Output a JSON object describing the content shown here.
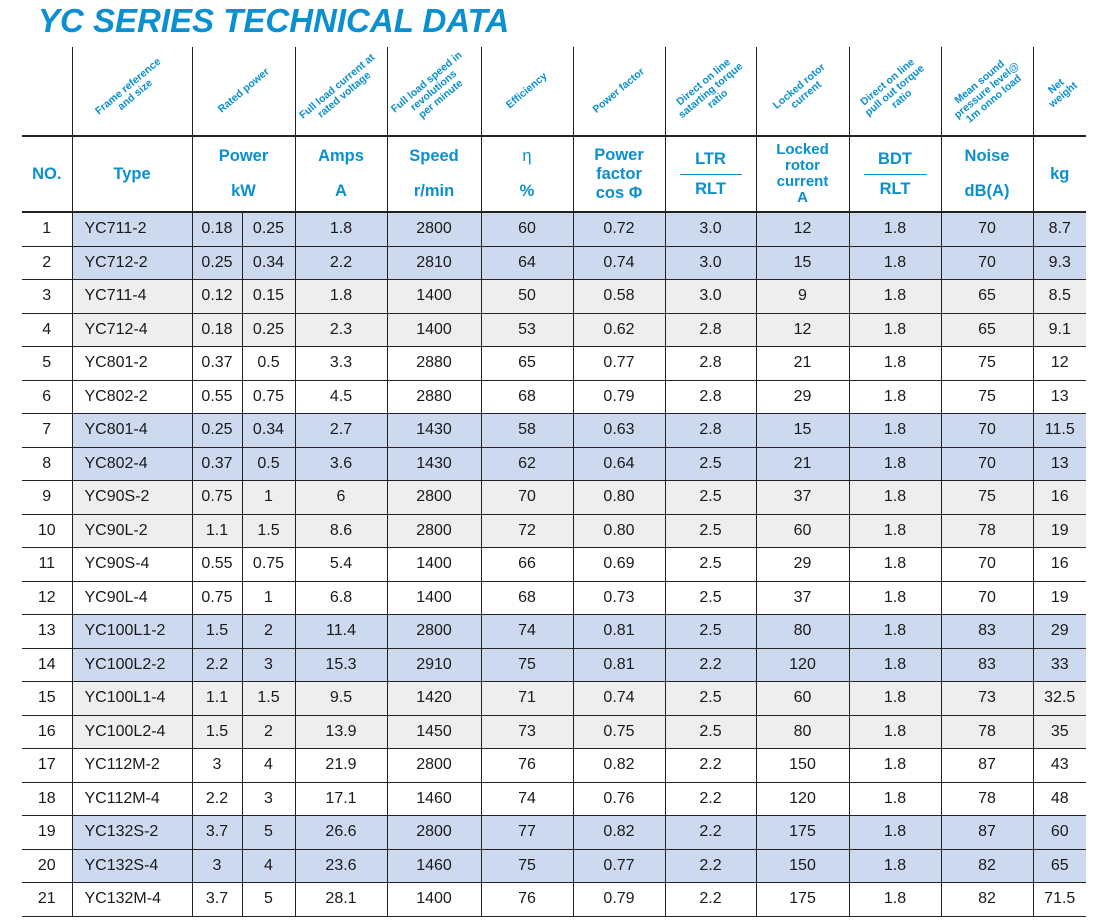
{
  "title": "YC SERIES TECHNICAL DATA",
  "rotated_headers": [
    "Frame reference\nand size",
    "Rated power",
    "Full load current at\nrated voltage",
    "Full load speed in\nrevolutions\nper minute",
    "Efficiency",
    "Power factor",
    "Direct on line\nsatarting torque\nratio",
    "Locked rotor\ncurrent",
    "Direct on line\npull out torque\nratio",
    "Mean sound\npressure level@\n1m onno load",
    "Net\nweight"
  ],
  "headers": {
    "no": "NO.",
    "type": "Type",
    "power": "Power",
    "power_unit": "kW",
    "amps": "Amps",
    "amps_unit": "A",
    "speed": "Speed",
    "speed_unit": "r/min",
    "eff": "η",
    "eff_unit": "%",
    "pf": "Power\nfactor",
    "pf_unit": "cos Φ",
    "ltr": "LTR",
    "rlt": "RLT",
    "lrc": "Locked\nrotor\ncurrent",
    "lrc_unit": "A",
    "bdt": "BDT",
    "bdt_unit": "RLT",
    "noise": "Noise",
    "noise_unit": "dB(A)",
    "kg": "kg"
  },
  "row_colors": {
    "blue": "#ccd9ee",
    "gray": "#eeeeee",
    "accent": "#0a8fd0"
  },
  "rows": [
    {
      "no": "1",
      "type": "YC711-2",
      "kw": "0.18",
      "hp": "0.25",
      "amps": "1.8",
      "speed": "2800",
      "eff": "60",
      "pf": "0.72",
      "ltr": "3.0",
      "lrc": "12",
      "bdt": "1.8",
      "noise": "70",
      "kg": "8.7",
      "shade": "blue"
    },
    {
      "no": "2",
      "type": "YC712-2",
      "kw": "0.25",
      "hp": "0.34",
      "amps": "2.2",
      "speed": "2810",
      "eff": "64",
      "pf": "0.74",
      "ltr": "3.0",
      "lrc": "15",
      "bdt": "1.8",
      "noise": "70",
      "kg": "9.3",
      "shade": "blue"
    },
    {
      "no": "3",
      "type": "YC711-4",
      "kw": "0.12",
      "hp": "0.15",
      "amps": "1.8",
      "speed": "1400",
      "eff": "50",
      "pf": "0.58",
      "ltr": "3.0",
      "lrc": "9",
      "bdt": "1.8",
      "noise": "65",
      "kg": "8.5",
      "shade": "gray"
    },
    {
      "no": "4",
      "type": "YC712-4",
      "kw": "0.18",
      "hp": "0.25",
      "amps": "2.3",
      "speed": "1400",
      "eff": "53",
      "pf": "0.62",
      "ltr": "2.8",
      "lrc": "12",
      "bdt": "1.8",
      "noise": "65",
      "kg": "9.1",
      "shade": "gray"
    },
    {
      "no": "5",
      "type": "YC801-2",
      "kw": "0.37",
      "hp": "0.5",
      "amps": "3.3",
      "speed": "2880",
      "eff": "65",
      "pf": "0.77",
      "ltr": "2.8",
      "lrc": "21",
      "bdt": "1.8",
      "noise": "75",
      "kg": "12",
      "shade": "white"
    },
    {
      "no": "6",
      "type": "YC802-2",
      "kw": "0.55",
      "hp": "0.75",
      "amps": "4.5",
      "speed": "2880",
      "eff": "68",
      "pf": "0.79",
      "ltr": "2.8",
      "lrc": "29",
      "bdt": "1.8",
      "noise": "75",
      "kg": "13",
      "shade": "white"
    },
    {
      "no": "7",
      "type": "YC801-4",
      "kw": "0.25",
      "hp": "0.34",
      "amps": "2.7",
      "speed": "1430",
      "eff": "58",
      "pf": "0.63",
      "ltr": "2.8",
      "lrc": "15",
      "bdt": "1.8",
      "noise": "70",
      "kg": "11.5",
      "shade": "blue"
    },
    {
      "no": "8",
      "type": "YC802-4",
      "kw": "0.37",
      "hp": "0.5",
      "amps": "3.6",
      "speed": "1430",
      "eff": "62",
      "pf": "0.64",
      "ltr": "2.5",
      "lrc": "21",
      "bdt": "1.8",
      "noise": "70",
      "kg": "13",
      "shade": "blue"
    },
    {
      "no": "9",
      "type": "YC90S-2",
      "kw": "0.75",
      "hp": "1",
      "amps": "6",
      "speed": "2800",
      "eff": "70",
      "pf": "0.80",
      "ltr": "2.5",
      "lrc": "37",
      "bdt": "1.8",
      "noise": "75",
      "kg": "16",
      "shade": "gray"
    },
    {
      "no": "10",
      "type": "YC90L-2",
      "kw": "1.1",
      "hp": "1.5",
      "amps": "8.6",
      "speed": "2800",
      "eff": "72",
      "pf": "0.80",
      "ltr": "2.5",
      "lrc": "60",
      "bdt": "1.8",
      "noise": "78",
      "kg": "19",
      "shade": "gray"
    },
    {
      "no": "11",
      "type": "YC90S-4",
      "kw": "0.55",
      "hp": "0.75",
      "amps": "5.4",
      "speed": "1400",
      "eff": "66",
      "pf": "0.69",
      "ltr": "2.5",
      "lrc": "29",
      "bdt": "1.8",
      "noise": "70",
      "kg": "16",
      "shade": "white"
    },
    {
      "no": "12",
      "type": "YC90L-4",
      "kw": "0.75",
      "hp": "1",
      "amps": "6.8",
      "speed": "1400",
      "eff": "68",
      "pf": "0.73",
      "ltr": "2.5",
      "lrc": "37",
      "bdt": "1.8",
      "noise": "70",
      "kg": "19",
      "shade": "white"
    },
    {
      "no": "13",
      "type": "YC100L1-2",
      "kw": "1.5",
      "hp": "2",
      "amps": "11.4",
      "speed": "2800",
      "eff": "74",
      "pf": "0.81",
      "ltr": "2.5",
      "lrc": "80",
      "bdt": "1.8",
      "noise": "83",
      "kg": "29",
      "shade": "blue"
    },
    {
      "no": "14",
      "type": "YC100L2-2",
      "kw": "2.2",
      "hp": "3",
      "amps": "15.3",
      "speed": "2910",
      "eff": "75",
      "pf": "0.81",
      "ltr": "2.2",
      "lrc": "120",
      "bdt": "1.8",
      "noise": "83",
      "kg": "33",
      "shade": "blue"
    },
    {
      "no": "15",
      "type": "YC100L1-4",
      "kw": "1.1",
      "hp": "1.5",
      "amps": "9.5",
      "speed": "1420",
      "eff": "71",
      "pf": "0.74",
      "ltr": "2.5",
      "lrc": "60",
      "bdt": "1.8",
      "noise": "73",
      "kg": "32.5",
      "shade": "gray"
    },
    {
      "no": "16",
      "type": "YC100L2-4",
      "kw": "1.5",
      "hp": "2",
      "amps": "13.9",
      "speed": "1450",
      "eff": "73",
      "pf": "0.75",
      "ltr": "2.5",
      "lrc": "80",
      "bdt": "1.8",
      "noise": "78",
      "kg": "35",
      "shade": "gray"
    },
    {
      "no": "17",
      "type": "YC112M-2",
      "kw": "3",
      "hp": "4",
      "amps": "21.9",
      "speed": "2800",
      "eff": "76",
      "pf": "0.82",
      "ltr": "2.2",
      "lrc": "150",
      "bdt": "1.8",
      "noise": "87",
      "kg": "43",
      "shade": "white"
    },
    {
      "no": "18",
      "type": "YC112M-4",
      "kw": "2.2",
      "hp": "3",
      "amps": "17.1",
      "speed": "1460",
      "eff": "74",
      "pf": "0.76",
      "ltr": "2.2",
      "lrc": "120",
      "bdt": "1.8",
      "noise": "78",
      "kg": "48",
      "shade": "white"
    },
    {
      "no": "19",
      "type": "YC132S-2",
      "kw": "3.7",
      "hp": "5",
      "amps": "26.6",
      "speed": "2800",
      "eff": "77",
      "pf": "0.82",
      "ltr": "2.2",
      "lrc": "175",
      "bdt": "1.8",
      "noise": "87",
      "kg": "60",
      "shade": "blue"
    },
    {
      "no": "20",
      "type": "YC132S-4",
      "kw": "3",
      "hp": "4",
      "amps": "23.6",
      "speed": "1460",
      "eff": "75",
      "pf": "0.77",
      "ltr": "2.2",
      "lrc": "150",
      "bdt": "1.8",
      "noise": "82",
      "kg": "65",
      "shade": "blue"
    },
    {
      "no": "21",
      "type": "YC132M-4",
      "kw": "3.7",
      "hp": "5",
      "amps": "28.1",
      "speed": "1400",
      "eff": "76",
      "pf": "0.79",
      "ltr": "2.2",
      "lrc": "175",
      "bdt": "1.8",
      "noise": "82",
      "kg": "71.5",
      "shade": "white"
    }
  ]
}
